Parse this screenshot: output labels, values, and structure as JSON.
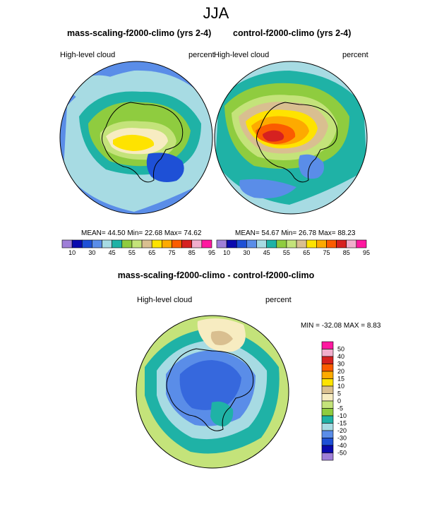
{
  "title": "JJA",
  "colors": {
    "abs_palette": [
      "#9f7fd8",
      "#0a0aae",
      "#1e50d6",
      "#5a8de8",
      "#a7dbe3",
      "#1fb2a6",
      "#8fcc3f",
      "#c4e37a",
      "#d9bf90",
      "#fee300",
      "#fdaa00",
      "#fb5c00",
      "#d62120",
      "#f1aecc",
      "#ff18a0"
    ],
    "diff_palette": [
      "#9f7fd8",
      "#0a0aae",
      "#1e50d6",
      "#5a8de8",
      "#a7dbe3",
      "#1fb2a6",
      "#8fcc3f",
      "#c4e37a",
      "#f7ecc1",
      "#d9bf90",
      "#fee300",
      "#fdaa00",
      "#fb5c00",
      "#d62120",
      "#f1aecc",
      "#ff18a0"
    ]
  },
  "panels": {
    "left": {
      "title": "mass-scaling-f2000-climo (yrs 2-4)",
      "left_label": "High-level cloud",
      "right_label": "percent",
      "stats": "MEAN=  44.50  Min=  22.68  Max=  74.62"
    },
    "right": {
      "title": "control-f2000-climo (yrs 2-4)",
      "left_label": "High-level cloud",
      "right_label": "percent",
      "stats": "MEAN=  54.67  Min=  26.78  Max=  88.23"
    },
    "diff": {
      "title": "mass-scaling-f2000-climo - control-f2000-climo",
      "left_label": "High-level cloud",
      "right_label": "percent",
      "stats": "MIN = -32.08 MAX =   8.83"
    }
  },
  "chart_data": [
    {
      "type": "heatmap",
      "title": "mass-scaling-f2000-climo (yrs 2-4)",
      "variable": "High-level cloud",
      "units": "percent",
      "mean": 44.5,
      "min": 22.68,
      "max": 74.62,
      "colorbar_levels": [
        10,
        15,
        20,
        25,
        30,
        35,
        40,
        45,
        50,
        55,
        60,
        65,
        70,
        75,
        80,
        85,
        90,
        95
      ],
      "colorbar_tick_labels": [
        "10",
        "30",
        "45",
        "55",
        "65",
        "75",
        "85",
        "95"
      ]
    },
    {
      "type": "heatmap",
      "title": "control-f2000-climo (yrs 2-4)",
      "variable": "High-level cloud",
      "units": "percent",
      "mean": 54.67,
      "min": 26.78,
      "max": 88.23,
      "colorbar_levels": [
        10,
        15,
        20,
        25,
        30,
        35,
        40,
        45,
        50,
        55,
        60,
        65,
        70,
        75,
        80,
        85,
        90,
        95
      ],
      "colorbar_tick_labels": [
        "10",
        "30",
        "45",
        "55",
        "65",
        "75",
        "85",
        "95"
      ]
    },
    {
      "type": "heatmap",
      "title": "mass-scaling-f2000-climo - control-f2000-climo",
      "variable": "High-level cloud",
      "units": "percent",
      "min": -32.08,
      "max": 8.83,
      "colorbar_tick_labels": [
        "50",
        "40",
        "30",
        "20",
        "15",
        "10",
        "5",
        "0",
        "-5",
        "-10",
        "-15",
        "-20",
        "-30",
        "-40",
        "-50"
      ]
    }
  ]
}
